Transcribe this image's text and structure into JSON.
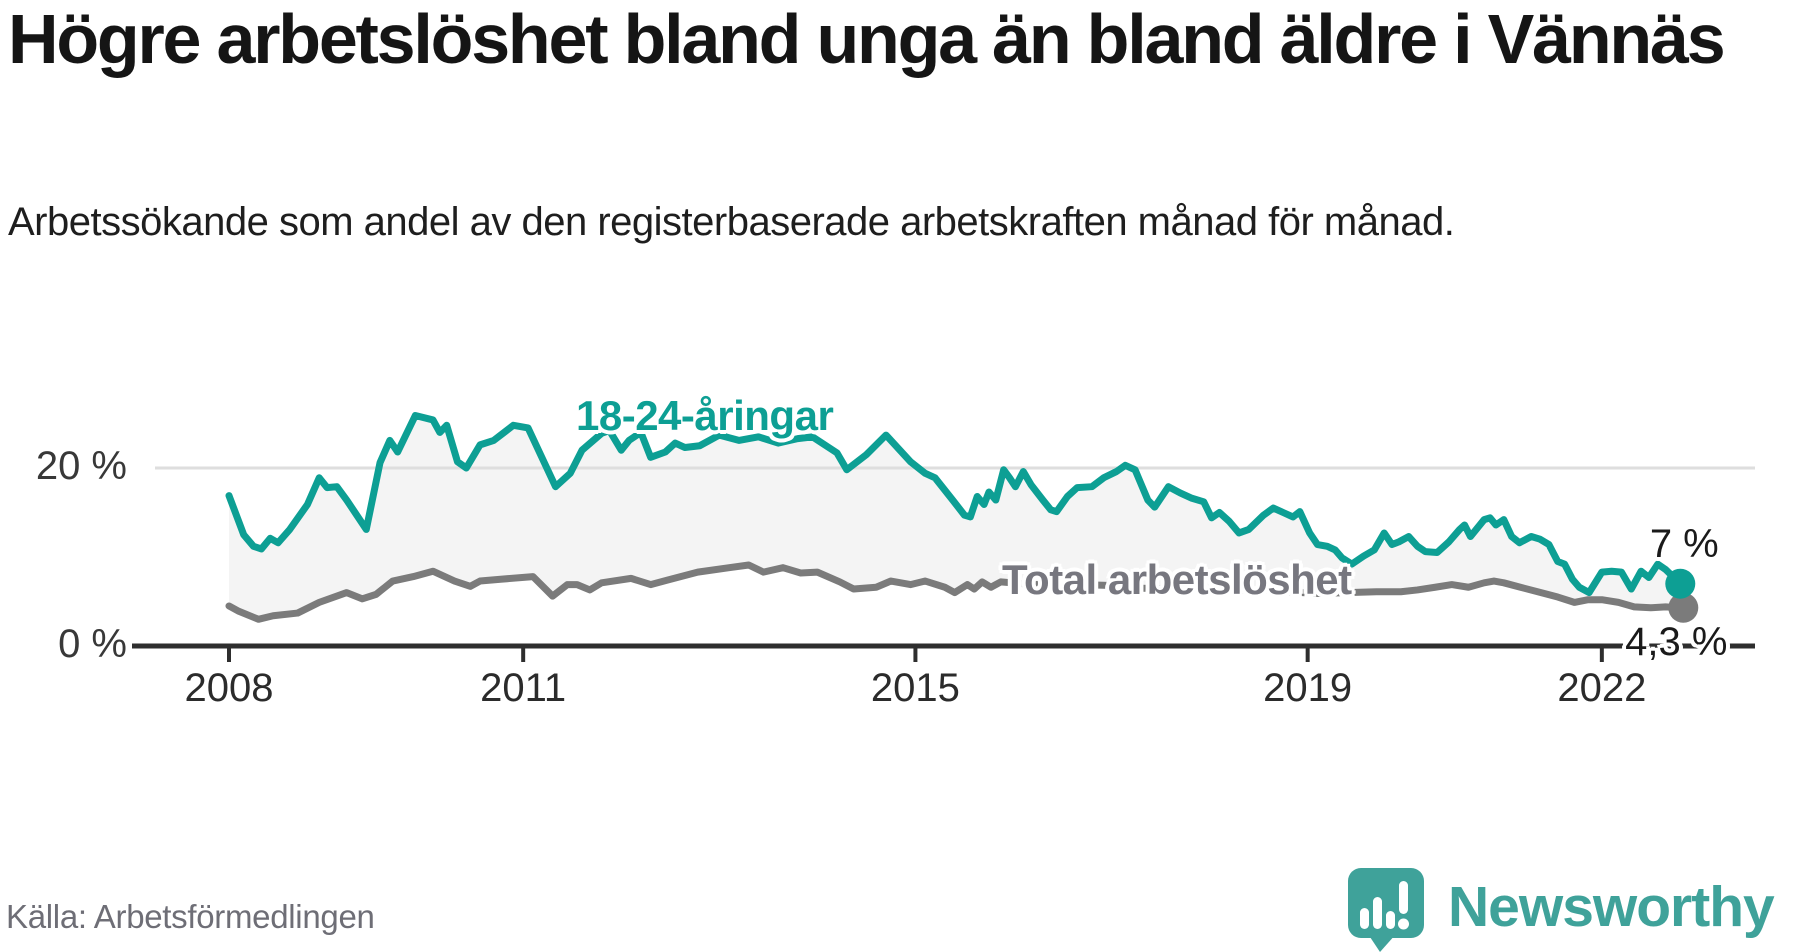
{
  "header": {
    "title": "Högre arbetslöshet bland unga än bland äldre i Vännäs",
    "subtitle": "Arbetssökande som andel av den registerbaserade arbetskraften månad för månad."
  },
  "footer": {
    "source": "Källa: Arbetsförmedlingen",
    "brand": "Newsworthy"
  },
  "colors": {
    "youth_line": "#0d9f94",
    "total_line": "#7b7b7b",
    "area_fill": "#f4f4f4",
    "grid_line": "#dedede",
    "axis_line": "#2e2e2e",
    "annotation_text": "#1a1a1a",
    "brand_teal": "#3fa29a",
    "tick_text": "#2b2b2b"
  },
  "chart_data": {
    "type": "line",
    "title": "Högre arbetslöshet bland unga än bland äldre i Vännäs",
    "subtitle": "Arbetssökande som andel av den registerbaserade arbetskraften månad för månad.",
    "unit": "%",
    "x_domain": [
      2008.0,
      2022.9
    ],
    "ylim": [
      0,
      27
    ],
    "grid": "horizontal-20-only",
    "legend_position": "inline-labels",
    "x_ticks": [
      2008,
      2011,
      2015,
      2019,
      2022
    ],
    "y_ticks": [
      {
        "value": 20,
        "label": "20 %"
      },
      {
        "value": 0,
        "label": "0 %"
      }
    ],
    "series": [
      {
        "name": "18-24-åringar",
        "color": "#0d9f94",
        "end_label": "7 %",
        "end_value": 7.0,
        "points": [
          [
            2008.0,
            16.9
          ],
          [
            2008.15,
            12.5
          ],
          [
            2008.25,
            11.2
          ],
          [
            2008.33,
            10.9
          ],
          [
            2008.42,
            12.1
          ],
          [
            2008.5,
            11.6
          ],
          [
            2008.62,
            13.1
          ],
          [
            2008.8,
            15.9
          ],
          [
            2008.92,
            18.9
          ],
          [
            2009.0,
            17.8
          ],
          [
            2009.1,
            17.9
          ],
          [
            2009.2,
            16.4
          ],
          [
            2009.4,
            13.1
          ],
          [
            2009.54,
            20.6
          ],
          [
            2009.64,
            23.1
          ],
          [
            2009.72,
            21.8
          ],
          [
            2009.9,
            25.9
          ],
          [
            2010.08,
            25.4
          ],
          [
            2010.15,
            24.0
          ],
          [
            2010.22,
            24.8
          ],
          [
            2010.33,
            20.7
          ],
          [
            2010.42,
            20.0
          ],
          [
            2010.56,
            22.6
          ],
          [
            2010.7,
            23.1
          ],
          [
            2010.9,
            24.8
          ],
          [
            2011.05,
            24.5
          ],
          [
            2011.33,
            17.9
          ],
          [
            2011.48,
            19.4
          ],
          [
            2011.6,
            22.0
          ],
          [
            2011.8,
            23.9
          ],
          [
            2011.88,
            24.2
          ],
          [
            2012.0,
            22.0
          ],
          [
            2012.08,
            23.1
          ],
          [
            2012.2,
            24.0
          ],
          [
            2012.3,
            21.2
          ],
          [
            2012.45,
            21.8
          ],
          [
            2012.55,
            22.8
          ],
          [
            2012.65,
            22.3
          ],
          [
            2012.8,
            22.5
          ],
          [
            2013.0,
            23.7
          ],
          [
            2013.2,
            23.1
          ],
          [
            2013.4,
            23.5
          ],
          [
            2013.6,
            22.8
          ],
          [
            2013.8,
            23.3
          ],
          [
            2013.95,
            23.5
          ],
          [
            2014.2,
            21.7
          ],
          [
            2014.3,
            19.8
          ],
          [
            2014.5,
            21.5
          ],
          [
            2014.7,
            23.7
          ],
          [
            2014.95,
            20.7
          ],
          [
            2015.1,
            19.4
          ],
          [
            2015.2,
            18.9
          ],
          [
            2015.38,
            16.4
          ],
          [
            2015.5,
            14.7
          ],
          [
            2015.56,
            14.5
          ],
          [
            2015.63,
            16.8
          ],
          [
            2015.7,
            15.9
          ],
          [
            2015.75,
            17.3
          ],
          [
            2015.82,
            16.4
          ],
          [
            2015.9,
            19.8
          ],
          [
            2015.96,
            18.9
          ],
          [
            2016.02,
            17.9
          ],
          [
            2016.1,
            19.6
          ],
          [
            2016.18,
            18.1
          ],
          [
            2016.3,
            16.4
          ],
          [
            2016.38,
            15.3
          ],
          [
            2016.44,
            15.1
          ],
          [
            2016.55,
            16.8
          ],
          [
            2016.65,
            17.8
          ],
          [
            2016.8,
            17.9
          ],
          [
            2016.92,
            18.9
          ],
          [
            2017.05,
            19.6
          ],
          [
            2017.14,
            20.3
          ],
          [
            2017.24,
            19.8
          ],
          [
            2017.37,
            16.4
          ],
          [
            2017.44,
            15.6
          ],
          [
            2017.58,
            17.9
          ],
          [
            2017.7,
            17.2
          ],
          [
            2017.82,
            16.6
          ],
          [
            2017.94,
            16.2
          ],
          [
            2018.02,
            14.4
          ],
          [
            2018.1,
            15.0
          ],
          [
            2018.2,
            14.0
          ],
          [
            2018.3,
            12.7
          ],
          [
            2018.4,
            13.1
          ],
          [
            2018.55,
            14.7
          ],
          [
            2018.65,
            15.5
          ],
          [
            2018.75,
            15.0
          ],
          [
            2018.85,
            14.5
          ],
          [
            2018.92,
            15.1
          ],
          [
            2019.02,
            12.7
          ],
          [
            2019.1,
            11.4
          ],
          [
            2019.2,
            11.2
          ],
          [
            2019.28,
            10.8
          ],
          [
            2019.35,
            9.9
          ],
          [
            2019.45,
            9.2
          ],
          [
            2019.57,
            10.1
          ],
          [
            2019.68,
            10.8
          ],
          [
            2019.78,
            12.7
          ],
          [
            2019.86,
            11.4
          ],
          [
            2019.93,
            11.7
          ],
          [
            2020.03,
            12.3
          ],
          [
            2020.12,
            11.2
          ],
          [
            2020.2,
            10.6
          ],
          [
            2020.32,
            10.5
          ],
          [
            2020.44,
            11.7
          ],
          [
            2020.55,
            13.1
          ],
          [
            2020.6,
            13.6
          ],
          [
            2020.66,
            12.3
          ],
          [
            2020.8,
            14.2
          ],
          [
            2020.86,
            14.4
          ],
          [
            2020.92,
            13.6
          ],
          [
            2021.0,
            14.2
          ],
          [
            2021.08,
            12.3
          ],
          [
            2021.16,
            11.6
          ],
          [
            2021.28,
            12.3
          ],
          [
            2021.37,
            12.0
          ],
          [
            2021.46,
            11.4
          ],
          [
            2021.55,
            9.5
          ],
          [
            2021.62,
            9.2
          ],
          [
            2021.7,
            7.5
          ],
          [
            2021.77,
            6.6
          ],
          [
            2021.87,
            6.0
          ],
          [
            2022.0,
            8.3
          ],
          [
            2022.1,
            8.4
          ],
          [
            2022.2,
            8.3
          ],
          [
            2022.3,
            6.4
          ],
          [
            2022.4,
            8.4
          ],
          [
            2022.48,
            7.7
          ],
          [
            2022.57,
            9.2
          ],
          [
            2022.65,
            8.6
          ],
          [
            2022.8,
            7.0
          ]
        ]
      },
      {
        "name": "Total arbetslöshet",
        "color": "#7b7b7b",
        "end_label": "4,3 %",
        "end_value": 4.3,
        "points": [
          [
            2008.0,
            4.5
          ],
          [
            2008.1,
            3.9
          ],
          [
            2008.3,
            3.0
          ],
          [
            2008.45,
            3.4
          ],
          [
            2008.7,
            3.7
          ],
          [
            2008.92,
            4.9
          ],
          [
            2009.2,
            6.0
          ],
          [
            2009.36,
            5.3
          ],
          [
            2009.5,
            5.8
          ],
          [
            2009.67,
            7.3
          ],
          [
            2009.88,
            7.8
          ],
          [
            2010.08,
            8.4
          ],
          [
            2010.3,
            7.3
          ],
          [
            2010.46,
            6.7
          ],
          [
            2010.56,
            7.3
          ],
          [
            2010.77,
            7.5
          ],
          [
            2011.1,
            7.8
          ],
          [
            2011.3,
            5.6
          ],
          [
            2011.45,
            6.9
          ],
          [
            2011.55,
            6.9
          ],
          [
            2011.68,
            6.3
          ],
          [
            2011.8,
            7.1
          ],
          [
            2012.1,
            7.6
          ],
          [
            2012.3,
            6.9
          ],
          [
            2012.47,
            7.4
          ],
          [
            2012.78,
            8.3
          ],
          [
            2013.1,
            8.8
          ],
          [
            2013.3,
            9.1
          ],
          [
            2013.45,
            8.3
          ],
          [
            2013.65,
            8.8
          ],
          [
            2013.83,
            8.2
          ],
          [
            2014.0,
            8.3
          ],
          [
            2014.23,
            7.2
          ],
          [
            2014.37,
            6.4
          ],
          [
            2014.6,
            6.6
          ],
          [
            2014.75,
            7.3
          ],
          [
            2014.95,
            6.9
          ],
          [
            2015.1,
            7.3
          ],
          [
            2015.3,
            6.6
          ],
          [
            2015.4,
            6.0
          ],
          [
            2015.53,
            6.9
          ],
          [
            2015.6,
            6.4
          ],
          [
            2015.68,
            7.2
          ],
          [
            2015.77,
            6.6
          ],
          [
            2015.87,
            7.2
          ],
          [
            2016.1,
            7.0
          ],
          [
            2016.4,
            6.8
          ],
          [
            2016.7,
            6.9
          ],
          [
            2017.0,
            6.8
          ],
          [
            2017.3,
            6.5
          ],
          [
            2017.6,
            6.4
          ],
          [
            2017.9,
            6.3
          ],
          [
            2018.2,
            6.2
          ],
          [
            2018.5,
            6.3
          ],
          [
            2018.8,
            6.1
          ],
          [
            2019.1,
            5.9
          ],
          [
            2019.4,
            6.0
          ],
          [
            2019.7,
            6.1
          ],
          [
            2019.95,
            6.1
          ],
          [
            2020.12,
            6.3
          ],
          [
            2020.3,
            6.6
          ],
          [
            2020.47,
            6.9
          ],
          [
            2020.64,
            6.6
          ],
          [
            2020.8,
            7.1
          ],
          [
            2020.9,
            7.3
          ],
          [
            2021.0,
            7.1
          ],
          [
            2021.17,
            6.6
          ],
          [
            2021.38,
            6.0
          ],
          [
            2021.55,
            5.5
          ],
          [
            2021.72,
            4.9
          ],
          [
            2021.86,
            5.2
          ],
          [
            2022.0,
            5.2
          ],
          [
            2022.17,
            4.9
          ],
          [
            2022.33,
            4.4
          ],
          [
            2022.5,
            4.3
          ],
          [
            2022.65,
            4.4
          ],
          [
            2022.8,
            4.3
          ]
        ]
      }
    ]
  }
}
